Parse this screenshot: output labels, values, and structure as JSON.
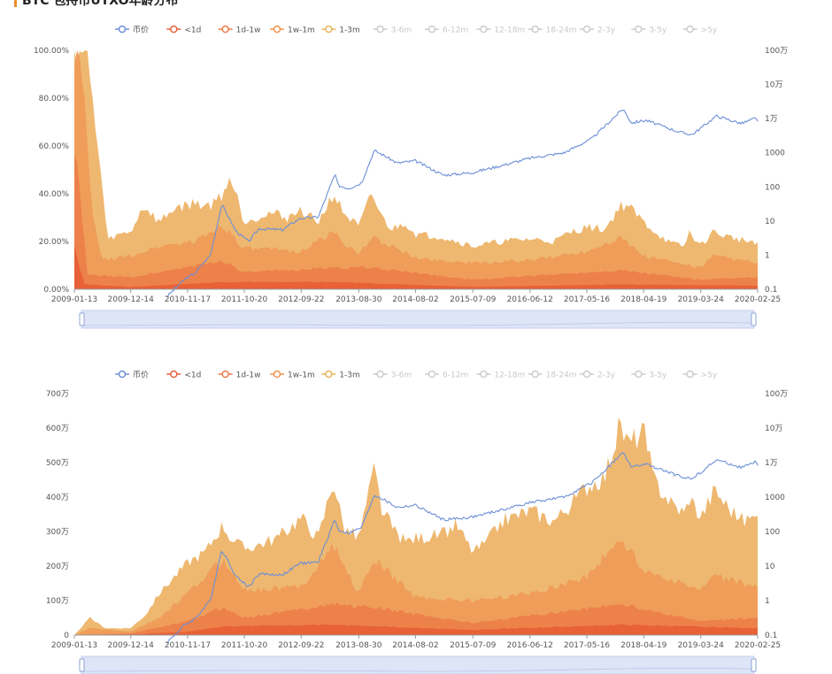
{
  "page": {
    "title": "BTC 包持币UTXO年龄分布"
  },
  "legend": {
    "items": [
      {
        "label": "币价",
        "color": "#6c8fd6",
        "active": true
      },
      {
        "label": "<1d",
        "color": "#e8603a",
        "active": true
      },
      {
        "label": "1d-1w",
        "color": "#ec7a48",
        "active": true
      },
      {
        "label": "1w-1m",
        "color": "#f0924c",
        "active": true
      },
      {
        "label": "1-3m",
        "color": "#e8b35a",
        "active": true
      },
      {
        "label": "3-6m",
        "color": "#cccccc",
        "active": false
      },
      {
        "label": "6-12m",
        "color": "#cccccc",
        "active": false
      },
      {
        "label": "12-18m",
        "color": "#cccccc",
        "active": false
      },
      {
        "label": "18-24m",
        "color": "#cccccc",
        "active": false
      },
      {
        "label": "2-3y",
        "color": "#cccccc",
        "active": false
      },
      {
        "label": "3-5y",
        "color": "#cccccc",
        "active": false
      },
      {
        "label": ">5y",
        "color": "#cccccc",
        "active": false
      }
    ]
  },
  "colors": {
    "price_line": "#6c8fd6",
    "band_1_3m": "#edb468",
    "band_1w_1m": "#ef9b57",
    "band_1d_1w": "#ec7f4a",
    "band_lt1d": "#e85f36",
    "zoom_fill": "#dde5f7",
    "zoom_border": "#c2cfee"
  },
  "chart_data": [
    {
      "type": "area",
      "title": "",
      "x_dates": [
        "2009-01-13",
        "2009-12-14",
        "2010-11-17",
        "2011-10-20",
        "2012-09-22",
        "2013-08-30",
        "2014-08-02",
        "2015-07-09",
        "2016-06-12",
        "2017-05-16",
        "2018-04-19",
        "2019-03-24",
        "2020-02-25"
      ],
      "y_left_ticks": [
        "0.00%",
        "20.00%",
        "40.00%",
        "60.00%",
        "80.00%",
        "100.00%"
      ],
      "y_left_range": [
        0,
        100
      ],
      "y_right_ticks": [
        "0.1",
        "1",
        "10",
        "100",
        "1000",
        "1万",
        "10万",
        "100万"
      ],
      "y_right_scale": "log",
      "y_right_range": [
        0.1,
        1000000
      ],
      "grid": false,
      "legend_position": "top-center",
      "price": {
        "name": "币价",
        "x": [
          "2010-07-15",
          "2010-11-01",
          "2011-01-01",
          "2011-04-01",
          "2011-06-08",
          "2011-07-15",
          "2011-09-01",
          "2011-11-15",
          "2012-01-15",
          "2012-06-01",
          "2012-09-15",
          "2013-01-01",
          "2013-04-10",
          "2013-05-01",
          "2013-07-01",
          "2013-09-15",
          "2013-11-30",
          "2014-01-15",
          "2014-04-15",
          "2014-08-01",
          "2015-01-15",
          "2015-07-01",
          "2016-01-01",
          "2016-06-15",
          "2017-01-01",
          "2017-06-15",
          "2017-12-17",
          "2018-02-05",
          "2018-05-01",
          "2018-11-20",
          "2019-02-01",
          "2019-06-26",
          "2019-11-20",
          "2020-02-10",
          "2020-02-25"
        ],
        "values": [
          0.06,
          0.2,
          0.3,
          1,
          30,
          14,
          5,
          2.5,
          6,
          5.5,
          12,
          13,
          230,
          110,
          90,
          130,
          1150,
          900,
          500,
          580,
          220,
          260,
          430,
          700,
          1000,
          2600,
          19500,
          7500,
          9000,
          4000,
          3400,
          12000,
          7200,
          10200,
          8800
        ]
      },
      "series": [
        {
          "name": "1-3m",
          "x": [
            "2009-01-13",
            "2009-03-25",
            "2009-06-01",
            "2009-08-01",
            "2009-09-01",
            "2009-12-14",
            "2010-03-01",
            "2010-06-01",
            "2010-09-01",
            "2011-01-01",
            "2011-04-01",
            "2011-06-15",
            "2011-07-20",
            "2011-09-01",
            "2011-10-20",
            "2011-12-15",
            "2012-04-01",
            "2012-07-01",
            "2012-09-22",
            "2013-01-01",
            "2013-04-01",
            "2013-06-01",
            "2013-08-30",
            "2013-11-15",
            "2014-01-15",
            "2014-03-15",
            "2014-06-01",
            "2014-08-02",
            "2015-01-01",
            "2015-07-09",
            "2016-01-01",
            "2016-06-12",
            "2016-11-01",
            "2017-02-15",
            "2017-05-16",
            "2017-09-01",
            "2017-12-01",
            "2018-01-15",
            "2018-04-19",
            "2018-08-01",
            "2018-10-01",
            "2018-12-20",
            "2019-01-15",
            "2019-03-24",
            "2019-06-01",
            "2019-09-01",
            "2020-01-01",
            "2020-02-25"
          ],
          "values": [
            100,
            100,
            60,
            20,
            22,
            24,
            35,
            28,
            34,
            36,
            35,
            40,
            47,
            40,
            28,
            30,
            32,
            30,
            33,
            28,
            40,
            32,
            26,
            40,
            30,
            25,
            28,
            23,
            22,
            18,
            20,
            21,
            20,
            24,
            26,
            25,
            35,
            35,
            28,
            22,
            19,
            18,
            24,
            18,
            24,
            22,
            20,
            20
          ]
        },
        {
          "name": "1w-1m",
          "x": [
            "2009-01-13",
            "2009-03-01",
            "2009-05-01",
            "2009-07-01",
            "2009-12-14",
            "2010-06-01",
            "2011-01-01",
            "2011-06-15",
            "2011-10-20",
            "2012-09-22",
            "2013-04-01",
            "2013-08-30",
            "2013-11-15",
            "2014-08-02",
            "2015-07-09",
            "2016-06-12",
            "2017-05-16",
            "2017-12-01",
            "2018-04-19",
            "2019-03-24",
            "2019-06-01",
            "2020-02-25"
          ],
          "values": [
            100,
            90,
            30,
            12,
            14,
            18,
            20,
            27,
            17,
            16,
            24,
            14,
            22,
            13,
            11,
            12,
            16,
            22,
            14,
            9,
            14,
            11
          ]
        },
        {
          "name": "1d-1w",
          "x": [
            "2009-01-13",
            "2009-02-15",
            "2009-04-01",
            "2009-12-14",
            "2011-06-15",
            "2011-10-20",
            "2013-04-01",
            "2013-11-15",
            "2015-07-09",
            "2017-12-01",
            "2019-03-24",
            "2020-02-25"
          ],
          "values": [
            60,
            40,
            6,
            5,
            12,
            7,
            9,
            9,
            4,
            8,
            4,
            5
          ]
        },
        {
          "name": "<1d",
          "x": [
            "2009-01-13",
            "2009-02-10",
            "2009-03-15",
            "2009-12-14",
            "2011-06-15",
            "2013-04-01",
            "2015-07-09",
            "2017-12-01",
            "2020-02-25"
          ],
          "values": [
            20,
            10,
            2,
            1,
            3,
            3,
            1,
            2,
            1.5
          ]
        }
      ]
    },
    {
      "type": "area",
      "title": "",
      "x_dates": [
        "2009-01-13",
        "2009-12-14",
        "2010-11-17",
        "2011-10-20",
        "2012-09-22",
        "2013-08-30",
        "2014-08-02",
        "2015-07-09",
        "2016-06-12",
        "2017-05-16",
        "2018-04-19",
        "2019-03-24",
        "2020-02-25"
      ],
      "y_left_ticks": [
        "0",
        "100万",
        "200万",
        "300万",
        "400万",
        "500万",
        "600万",
        "700万"
      ],
      "y_left_range": [
        0,
        7000000
      ],
      "y_right_ticks": [
        "0.1",
        "1",
        "10",
        "100",
        "1000",
        "1万",
        "10万",
        "100万"
      ],
      "y_right_scale": "log",
      "y_right_range": [
        0.1,
        1000000
      ],
      "grid": false,
      "legend_position": "top-center",
      "price": {
        "name": "币价",
        "x": [
          "2010-07-15",
          "2010-11-01",
          "2011-01-01",
          "2011-04-01",
          "2011-06-08",
          "2011-07-15",
          "2011-09-01",
          "2011-11-15",
          "2012-01-15",
          "2012-06-01",
          "2012-09-15",
          "2013-01-01",
          "2013-04-10",
          "2013-05-01",
          "2013-07-01",
          "2013-09-15",
          "2013-11-30",
          "2014-01-15",
          "2014-04-15",
          "2014-08-01",
          "2015-01-15",
          "2015-07-01",
          "2016-01-01",
          "2016-06-15",
          "2017-01-01",
          "2017-06-15",
          "2017-12-17",
          "2018-02-05",
          "2018-05-01",
          "2018-11-20",
          "2019-02-01",
          "2019-06-26",
          "2019-11-20",
          "2020-02-10",
          "2020-02-25"
        ],
        "values": [
          0.06,
          0.2,
          0.3,
          1,
          30,
          14,
          5,
          2.5,
          6,
          5.5,
          12,
          13,
          230,
          110,
          90,
          130,
          1150,
          900,
          500,
          580,
          220,
          260,
          430,
          700,
          1000,
          2600,
          19500,
          7500,
          9000,
          4000,
          3400,
          12000,
          7200,
          10200,
          8800
        ]
      },
      "series": [
        {
          "name": "1-3m",
          "x": [
            "2009-01-13",
            "2009-04-15",
            "2009-07-15",
            "2009-12-14",
            "2010-03-15",
            "2010-06-01",
            "2010-09-01",
            "2010-11-17",
            "2011-03-01",
            "2011-06-15",
            "2011-08-01",
            "2011-10-20",
            "2012-01-01",
            "2012-05-01",
            "2012-09-22",
            "2013-01-01",
            "2013-04-01",
            "2013-06-01",
            "2013-08-30",
            "2013-11-30",
            "2014-01-15",
            "2014-04-01",
            "2014-06-01",
            "2014-08-02",
            "2015-01-01",
            "2015-04-01",
            "2015-07-09",
            "2015-10-01",
            "2016-01-01",
            "2016-06-12",
            "2016-11-01",
            "2017-02-15",
            "2017-05-16",
            "2017-09-01",
            "2017-12-01",
            "2018-01-15",
            "2018-04-19",
            "2018-06-15",
            "2018-10-01",
            "2018-12-20",
            "2019-01-15",
            "2019-03-24",
            "2019-06-15",
            "2019-09-01",
            "2019-12-01",
            "2020-02-10",
            "2020-02-25"
          ],
          "values": [
            0,
            500000,
            200000,
            200000,
            600000,
            1200000,
            1700000,
            2100000,
            2400000,
            3200000,
            2800000,
            2500000,
            2600000,
            2800000,
            3400000,
            2800000,
            4500000,
            3100000,
            2800000,
            4800000,
            3600000,
            3000000,
            2700000,
            2800000,
            2900000,
            3200000,
            2400000,
            2700000,
            3300000,
            3600000,
            3300000,
            3800000,
            4300000,
            4600000,
            6100000,
            5500000,
            5900000,
            4500000,
            3800000,
            3500000,
            4000000,
            3400000,
            4200000,
            3700000,
            3300000,
            3400000,
            3700000
          ]
        },
        {
          "name": "1w-1m",
          "x": [
            "2009-01-13",
            "2009-04-15",
            "2009-12-14",
            "2010-06-01",
            "2010-11-17",
            "2011-06-15",
            "2011-10-20",
            "2012-09-22",
            "2013-04-01",
            "2013-08-30",
            "2013-11-30",
            "2014-08-02",
            "2015-07-09",
            "2016-06-12",
            "2017-05-16",
            "2017-12-01",
            "2018-04-19",
            "2019-03-24",
            "2019-06-15",
            "2020-02-25"
          ],
          "values": [
            0,
            200000,
            100000,
            500000,
            1200000,
            2200000,
            1300000,
            1400000,
            2600000,
            1200000,
            2200000,
            1100000,
            1000000,
            1200000,
            1700000,
            2800000,
            1900000,
            1300000,
            1700000,
            1400000
          ]
        },
        {
          "name": "1d-1w",
          "x": [
            "2009-01-13",
            "2009-12-14",
            "2010-11-17",
            "2011-06-15",
            "2011-10-20",
            "2013-04-01",
            "2013-11-30",
            "2015-07-09",
            "2017-12-01",
            "2019-03-24",
            "2020-02-25"
          ],
          "values": [
            0,
            50000,
            400000,
            800000,
            500000,
            900000,
            800000,
            350000,
            900000,
            400000,
            500000
          ]
        },
        {
          "name": "<1d",
          "x": [
            "2009-01-13",
            "2009-12-14",
            "2010-11-17",
            "2011-06-15",
            "2013-04-01",
            "2015-07-09",
            "2017-12-01",
            "2020-02-25"
          ],
          "values": [
            0,
            20000,
            100000,
            250000,
            300000,
            150000,
            300000,
            200000
          ]
        }
      ]
    }
  ]
}
